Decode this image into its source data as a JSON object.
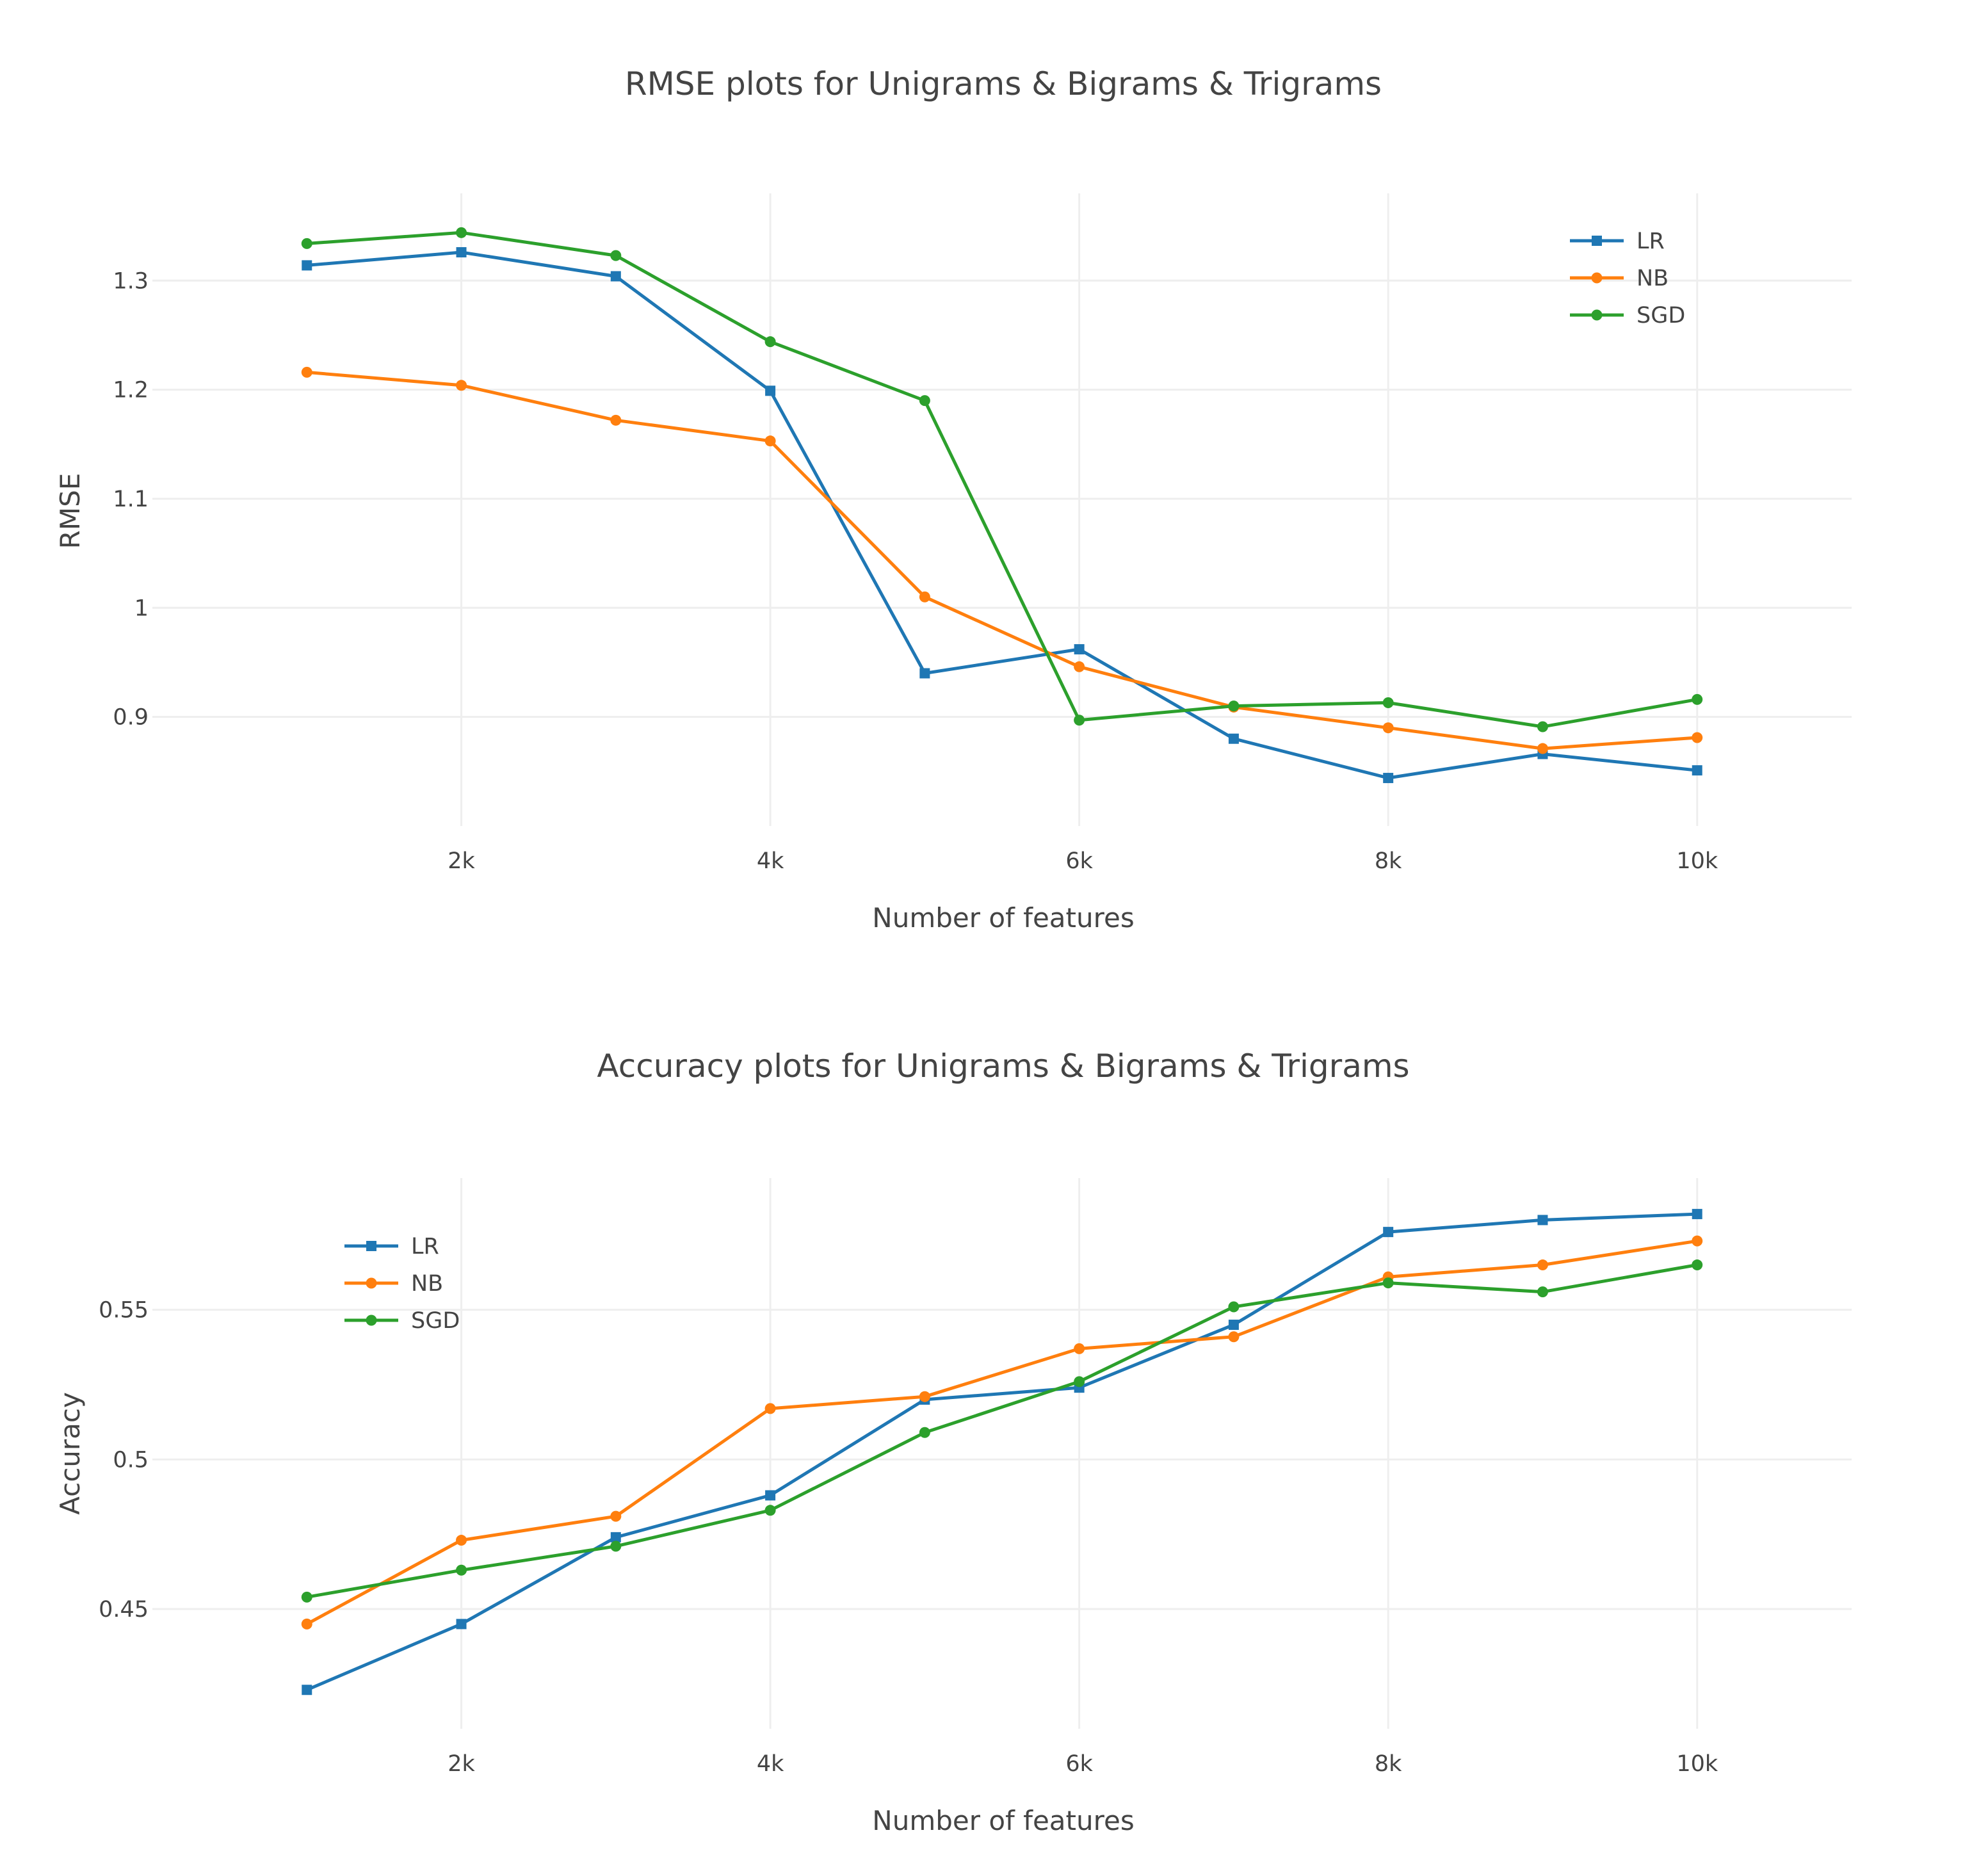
{
  "chart_data": [
    {
      "type": "line",
      "title": "RMSE plots for Unigrams & Bigrams & Trigrams",
      "xlabel": "Number of features",
      "ylabel": "RMSE",
      "x": [
        1000,
        2000,
        3000,
        4000,
        5000,
        6000,
        7000,
        8000,
        9000,
        10000
      ],
      "xlim": [
        0,
        11000
      ],
      "ylim": [
        0.8,
        1.38
      ],
      "xticks": [
        2000,
        4000,
        6000,
        8000,
        10000
      ],
      "xtick_labels": [
        "2k",
        "4k",
        "6k",
        "8k",
        "10k"
      ],
      "yticks": [
        0.9,
        1.0,
        1.1,
        1.2,
        1.3
      ],
      "ytick_labels": [
        "0.9",
        "1",
        "1.1",
        "1.2",
        "1.3"
      ],
      "grid": true,
      "legend": "top-right",
      "series": [
        {
          "name": "LR",
          "color": "#1f77b4",
          "marker": "square",
          "values": [
            1.314,
            1.326,
            1.304,
            1.199,
            0.94,
            0.962,
            0.88,
            0.844,
            0.866,
            0.851
          ]
        },
        {
          "name": "NB",
          "color": "#ff7f0e",
          "marker": "circle",
          "values": [
            1.216,
            1.204,
            1.172,
            1.153,
            1.01,
            0.946,
            0.909,
            0.89,
            0.871,
            0.881
          ]
        },
        {
          "name": "SGD",
          "color": "#2ca02c",
          "marker": "circle",
          "values": [
            1.334,
            1.344,
            1.323,
            1.244,
            1.19,
            0.897,
            0.91,
            0.913,
            0.891,
            0.916
          ]
        }
      ]
    },
    {
      "type": "line",
      "title": "Accuracy plots for Unigrams & Bigrams & Trigrams",
      "xlabel": "Number of features",
      "ylabel": "Accuracy",
      "x": [
        1000,
        2000,
        3000,
        4000,
        5000,
        6000,
        7000,
        8000,
        9000,
        10000
      ],
      "xlim": [
        0,
        11000
      ],
      "ylim": [
        0.41,
        0.594
      ],
      "xticks": [
        2000,
        4000,
        6000,
        8000,
        10000
      ],
      "xtick_labels": [
        "2k",
        "4k",
        "6k",
        "8k",
        "10k"
      ],
      "yticks": [
        0.45,
        0.5,
        0.55
      ],
      "ytick_labels": [
        "0.45",
        "0.5",
        "0.55"
      ],
      "grid": true,
      "legend": "top-left",
      "series": [
        {
          "name": "LR",
          "color": "#1f77b4",
          "marker": "square",
          "values": [
            0.423,
            0.445,
            0.474,
            0.488,
            0.52,
            0.524,
            0.545,
            0.576,
            0.58,
            0.582
          ]
        },
        {
          "name": "NB",
          "color": "#ff7f0e",
          "marker": "circle",
          "values": [
            0.445,
            0.473,
            0.481,
            0.517,
            0.521,
            0.537,
            0.541,
            0.561,
            0.565,
            0.573
          ]
        },
        {
          "name": "SGD",
          "color": "#2ca02c",
          "marker": "circle",
          "values": [
            0.454,
            0.463,
            0.471,
            0.483,
            0.509,
            0.526,
            0.551,
            0.559,
            0.556,
            0.565
          ]
        }
      ]
    }
  ]
}
